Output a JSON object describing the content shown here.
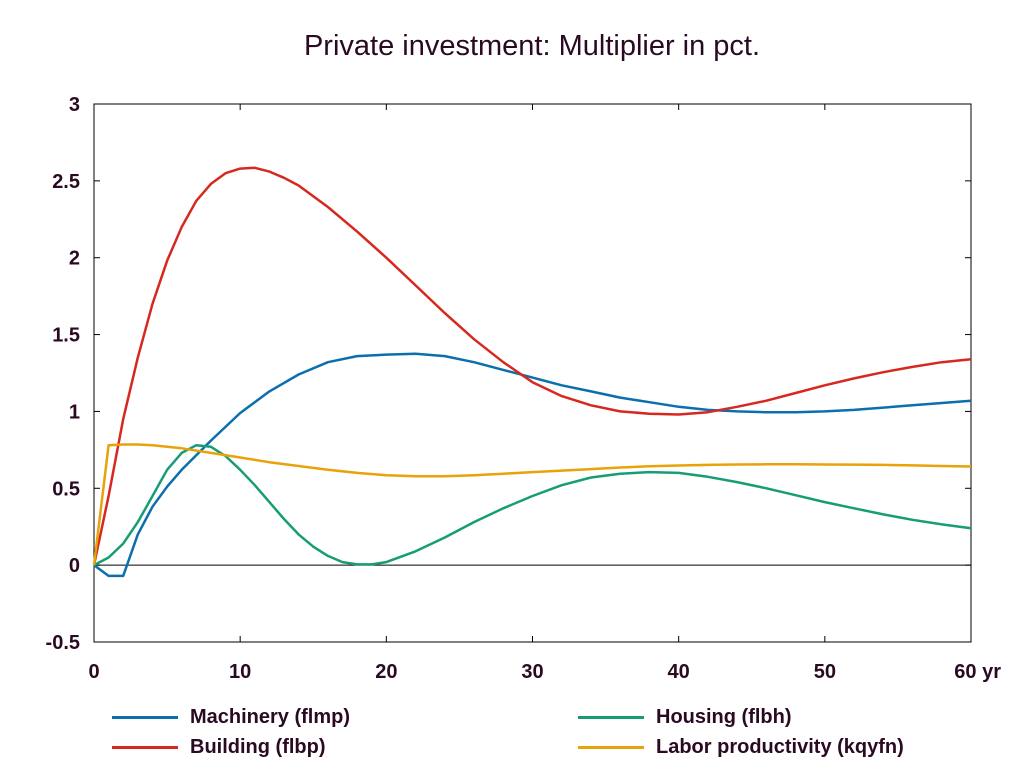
{
  "chart_data": {
    "type": "line",
    "title": "Private investment: Multiplier in pct.",
    "xlabel": "",
    "ylabel": "",
    "x_unit": "yr",
    "xlim": [
      0,
      60
    ],
    "ylim": [
      -0.5,
      3
    ],
    "xticks": [
      0,
      10,
      20,
      30,
      40,
      50,
      60
    ],
    "xtick_labels": [
      "0",
      "10",
      "20",
      "30",
      "40",
      "50",
      "60 yr"
    ],
    "yticks": [
      -0.5,
      0,
      0.5,
      1,
      1.5,
      2,
      2.5,
      3
    ],
    "ytick_labels": [
      "-0.5",
      "0",
      "0.5",
      "1",
      "1.5",
      "2",
      "2.5",
      "3"
    ],
    "grid": false,
    "zero_line": true,
    "legend_position": "bottom",
    "series": [
      {
        "name": "Machinery (flmp)",
        "color": "#0b6fad",
        "x": [
          0,
          1,
          2,
          3,
          4,
          5,
          6,
          8,
          10,
          12,
          14,
          16,
          18,
          20,
          22,
          24,
          26,
          28,
          30,
          32,
          34,
          36,
          38,
          40,
          42,
          44,
          46,
          48,
          50,
          52,
          54,
          56,
          58,
          60
        ],
        "values": [
          0,
          -0.07,
          -0.07,
          0.2,
          0.38,
          0.51,
          0.62,
          0.81,
          0.99,
          1.13,
          1.24,
          1.32,
          1.36,
          1.37,
          1.375,
          1.36,
          1.32,
          1.27,
          1.22,
          1.17,
          1.13,
          1.09,
          1.06,
          1.03,
          1.01,
          1.0,
          0.995,
          0.995,
          1.0,
          1.01,
          1.025,
          1.04,
          1.055,
          1.07
        ]
      },
      {
        "name": "Building (flbp)",
        "color": "#d7281f",
        "x": [
          0,
          1,
          2,
          3,
          4,
          5,
          6,
          7,
          8,
          9,
          10,
          11,
          12,
          13,
          14,
          16,
          18,
          20,
          22,
          24,
          26,
          28,
          30,
          32,
          34,
          36,
          38,
          40,
          42,
          44,
          46,
          48,
          50,
          52,
          54,
          56,
          58,
          60
        ],
        "values": [
          0,
          0.45,
          0.95,
          1.35,
          1.7,
          1.98,
          2.2,
          2.37,
          2.48,
          2.55,
          2.58,
          2.585,
          2.56,
          2.52,
          2.47,
          2.33,
          2.17,
          2.0,
          1.82,
          1.64,
          1.47,
          1.32,
          1.19,
          1.1,
          1.04,
          1.0,
          0.985,
          0.98,
          0.995,
          1.03,
          1.07,
          1.12,
          1.17,
          1.215,
          1.255,
          1.29,
          1.32,
          1.34
        ]
      },
      {
        "name": "Housing (flbh)",
        "color": "#179d76",
        "x": [
          0,
          1,
          2,
          3,
          4,
          5,
          6,
          7,
          8,
          9,
          10,
          11,
          12,
          13,
          14,
          15,
          16,
          17,
          18,
          19,
          20,
          22,
          24,
          26,
          28,
          30,
          32,
          34,
          36,
          38,
          40,
          42,
          44,
          46,
          48,
          50,
          52,
          54,
          56,
          58,
          60
        ],
        "values": [
          0,
          0.05,
          0.14,
          0.28,
          0.45,
          0.62,
          0.73,
          0.78,
          0.77,
          0.71,
          0.62,
          0.52,
          0.41,
          0.3,
          0.2,
          0.12,
          0.06,
          0.02,
          0.005,
          0.005,
          0.02,
          0.09,
          0.18,
          0.28,
          0.37,
          0.45,
          0.52,
          0.57,
          0.595,
          0.605,
          0.6,
          0.575,
          0.54,
          0.5,
          0.455,
          0.41,
          0.37,
          0.33,
          0.295,
          0.265,
          0.24
        ]
      },
      {
        "name": "Labor productivity (kqyfn)",
        "color": "#e8a20a",
        "x": [
          0,
          1,
          2,
          3,
          4,
          6,
          8,
          10,
          12,
          14,
          16,
          18,
          20,
          22,
          24,
          26,
          28,
          30,
          32,
          34,
          36,
          38,
          40,
          42,
          44,
          46,
          48,
          50,
          52,
          54,
          56,
          58,
          60
        ],
        "values": [
          0,
          0.78,
          0.785,
          0.785,
          0.78,
          0.76,
          0.73,
          0.7,
          0.67,
          0.645,
          0.62,
          0.6,
          0.585,
          0.578,
          0.578,
          0.585,
          0.595,
          0.605,
          0.615,
          0.625,
          0.635,
          0.643,
          0.648,
          0.652,
          0.655,
          0.656,
          0.656,
          0.655,
          0.654,
          0.652,
          0.649,
          0.645,
          0.642
        ]
      }
    ]
  }
}
